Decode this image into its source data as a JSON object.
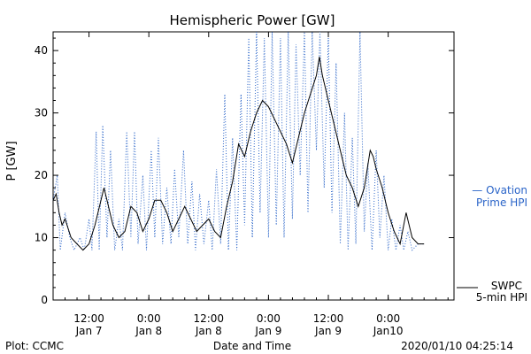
{
  "chart_data": {
    "type": "line",
    "title": "Hemispheric Power [GW]",
    "ylabel": "P [GW]",
    "xlabel": "Date and Time",
    "ylim": [
      0,
      43
    ],
    "xlim_hours": [
      0,
      67
    ],
    "yticks": [
      0,
      10,
      20,
      30,
      40
    ],
    "xticks": [
      {
        "h": 6,
        "time": "12:00",
        "date": "Jan 7"
      },
      {
        "h": 16,
        "time": "0:00",
        "date": "Jan 8"
      },
      {
        "h": 26,
        "time": "12:00",
        "date": "Jan 8"
      },
      {
        "h": 36,
        "time": "0:00",
        "date": "Jan 9"
      },
      {
        "h": 46,
        "time": "12:00",
        "date": "Jan 9"
      },
      {
        "h": 56,
        "time": "0:00",
        "date": "Jan10"
      }
    ],
    "legend": {
      "ovation": {
        "line1": "— Ovation",
        "line2": "Prime HPI",
        "color": "#2a64c8"
      },
      "swpc": {
        "line1": "SWPC",
        "line2": "5-min HPI",
        "color": "#000000"
      }
    },
    "grid": false,
    "series": [
      {
        "name": "SWPC 5-min HPI",
        "style": "solid",
        "color": "#000000",
        "points": [
          [
            0,
            16
          ],
          [
            0.5,
            17
          ],
          [
            1,
            14
          ],
          [
            1.5,
            12
          ],
          [
            2,
            13
          ],
          [
            3,
            10
          ],
          [
            4,
            9
          ],
          [
            5,
            8
          ],
          [
            6,
            9
          ],
          [
            7,
            12
          ],
          [
            8,
            16
          ],
          [
            8.5,
            18
          ],
          [
            9,
            16
          ],
          [
            10,
            12
          ],
          [
            11,
            10
          ],
          [
            12,
            11
          ],
          [
            13,
            15
          ],
          [
            14,
            14
          ],
          [
            15,
            11
          ],
          [
            16,
            13
          ],
          [
            17,
            16
          ],
          [
            18,
            16
          ],
          [
            19,
            14
          ],
          [
            20,
            11
          ],
          [
            21,
            13
          ],
          [
            22,
            15
          ],
          [
            23,
            13
          ],
          [
            24,
            11
          ],
          [
            25,
            12
          ],
          [
            26,
            13
          ],
          [
            27,
            11
          ],
          [
            28,
            10
          ],
          [
            29,
            15
          ],
          [
            30,
            19
          ],
          [
            31,
            25
          ],
          [
            32,
            23
          ],
          [
            33,
            27
          ],
          [
            34,
            30
          ],
          [
            35,
            32
          ],
          [
            36,
            31
          ],
          [
            37,
            29
          ],
          [
            38,
            27
          ],
          [
            39,
            25
          ],
          [
            40,
            22
          ],
          [
            41,
            26
          ],
          [
            42,
            30
          ],
          [
            43,
            33
          ],
          [
            44,
            36
          ],
          [
            44.5,
            39
          ],
          [
            45,
            36
          ],
          [
            46,
            32
          ],
          [
            47,
            28
          ],
          [
            48,
            24
          ],
          [
            49,
            20
          ],
          [
            50,
            18
          ],
          [
            51,
            15
          ],
          [
            52,
            18
          ],
          [
            53,
            24
          ],
          [
            53.5,
            23
          ],
          [
            54,
            21
          ],
          [
            55,
            18
          ],
          [
            56,
            14
          ],
          [
            57,
            11
          ],
          [
            58,
            9
          ],
          [
            59,
            14
          ],
          [
            60,
            10
          ],
          [
            61,
            9
          ],
          [
            62,
            9
          ]
        ]
      },
      {
        "name": "Ovation Prime HPI",
        "style": "dotted",
        "color": "#2a64c8",
        "points": [
          [
            0,
            16
          ],
          [
            0.7,
            20
          ],
          [
            1.2,
            8
          ],
          [
            2,
            14
          ],
          [
            2.8,
            10
          ],
          [
            3.5,
            8
          ],
          [
            4.5,
            10
          ],
          [
            5.2,
            8
          ],
          [
            6,
            13
          ],
          [
            6.5,
            8
          ],
          [
            7.2,
            27
          ],
          [
            7.7,
            8
          ],
          [
            8.3,
            28
          ],
          [
            9,
            10
          ],
          [
            9.6,
            24
          ],
          [
            10.3,
            8
          ],
          [
            11,
            13
          ],
          [
            11.6,
            8
          ],
          [
            12.3,
            27
          ],
          [
            13,
            10
          ],
          [
            13.6,
            27
          ],
          [
            14.2,
            9
          ],
          [
            15,
            20
          ],
          [
            15.6,
            8
          ],
          [
            16.4,
            24
          ],
          [
            17,
            10
          ],
          [
            17.6,
            26
          ],
          [
            18.3,
            9
          ],
          [
            19,
            18
          ],
          [
            19.7,
            9
          ],
          [
            20.3,
            21
          ],
          [
            21,
            10
          ],
          [
            21.8,
            24
          ],
          [
            22.5,
            9
          ],
          [
            23.2,
            19
          ],
          [
            23.8,
            8
          ],
          [
            24.5,
            17
          ],
          [
            25.2,
            9
          ],
          [
            26,
            16
          ],
          [
            26.6,
            8
          ],
          [
            27.3,
            21
          ],
          [
            28,
            9
          ],
          [
            28.7,
            33
          ],
          [
            29.3,
            8
          ],
          [
            30,
            26
          ],
          [
            30.7,
            8
          ],
          [
            31.4,
            33
          ],
          [
            32,
            12
          ],
          [
            32.7,
            42
          ],
          [
            33.3,
            10
          ],
          [
            34,
            43
          ],
          [
            34.6,
            14
          ],
          [
            35.3,
            42
          ],
          [
            36,
            10
          ],
          [
            36.6,
            43
          ],
          [
            37.3,
            12
          ],
          [
            38,
            42
          ],
          [
            38.6,
            10
          ],
          [
            39.3,
            43
          ],
          [
            40,
            13
          ],
          [
            40.6,
            41
          ],
          [
            41.3,
            20
          ],
          [
            42,
            43
          ],
          [
            42.6,
            14
          ],
          [
            43.3,
            43
          ],
          [
            44,
            24
          ],
          [
            44.6,
            43
          ],
          [
            45.3,
            18
          ],
          [
            46,
            42
          ],
          [
            46.6,
            14
          ],
          [
            47.3,
            38
          ],
          [
            48,
            9
          ],
          [
            48.7,
            30
          ],
          [
            49.3,
            8
          ],
          [
            50,
            26
          ],
          [
            50.6,
            9
          ],
          [
            51.3,
            43
          ],
          [
            52,
            11
          ],
          [
            52.6,
            22
          ],
          [
            53.3,
            8
          ],
          [
            54,
            24
          ],
          [
            54.6,
            10
          ],
          [
            55.3,
            20
          ],
          [
            56,
            8
          ],
          [
            56.6,
            13
          ],
          [
            57.3,
            8
          ],
          [
            58,
            12
          ],
          [
            58.6,
            8
          ],
          [
            59.3,
            11
          ],
          [
            60,
            8
          ],
          [
            61,
            9
          ],
          [
            62,
            9
          ]
        ]
      }
    ]
  },
  "footer": {
    "left": "Plot: CCMC",
    "center": "Date and Time",
    "right": "2020/01/10 04:25:14"
  }
}
